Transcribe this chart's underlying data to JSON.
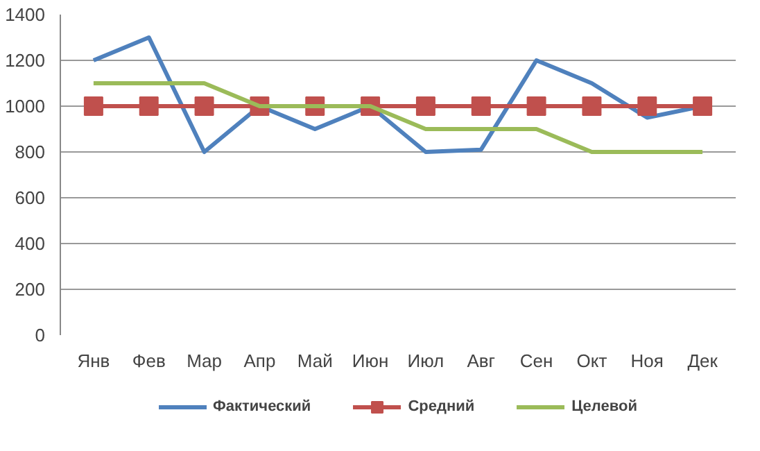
{
  "chart_data": {
    "type": "line",
    "categories": [
      "Янв",
      "Фев",
      "Мар",
      "Апр",
      "Май",
      "Июн",
      "Июл",
      "Авг",
      "Сен",
      "Окт",
      "Ноя",
      "Дек"
    ],
    "series": [
      {
        "name": "Фактический",
        "color": "#4f81bd",
        "marker": "none",
        "values": [
          1200,
          1300,
          800,
          1000,
          900,
          1000,
          800,
          810,
          1200,
          1100,
          950,
          1000
        ]
      },
      {
        "name": "Средний",
        "color": "#c0504d",
        "marker": "square",
        "values": [
          1000,
          1000,
          1000,
          1000,
          1000,
          1000,
          1000,
          1000,
          1000,
          1000,
          1000,
          1000
        ]
      },
      {
        "name": "Целевой",
        "color": "#9bbb59",
        "marker": "none",
        "values": [
          1100,
          1100,
          1100,
          1000,
          1000,
          1000,
          900,
          900,
          900,
          800,
          800,
          800
        ]
      }
    ],
    "ylim": [
      0,
      1400
    ],
    "yticks": [
      0,
      200,
      400,
      600,
      800,
      1000,
      1200,
      1400
    ],
    "grid": "y",
    "legend": "bottom",
    "line_style": "solid"
  }
}
